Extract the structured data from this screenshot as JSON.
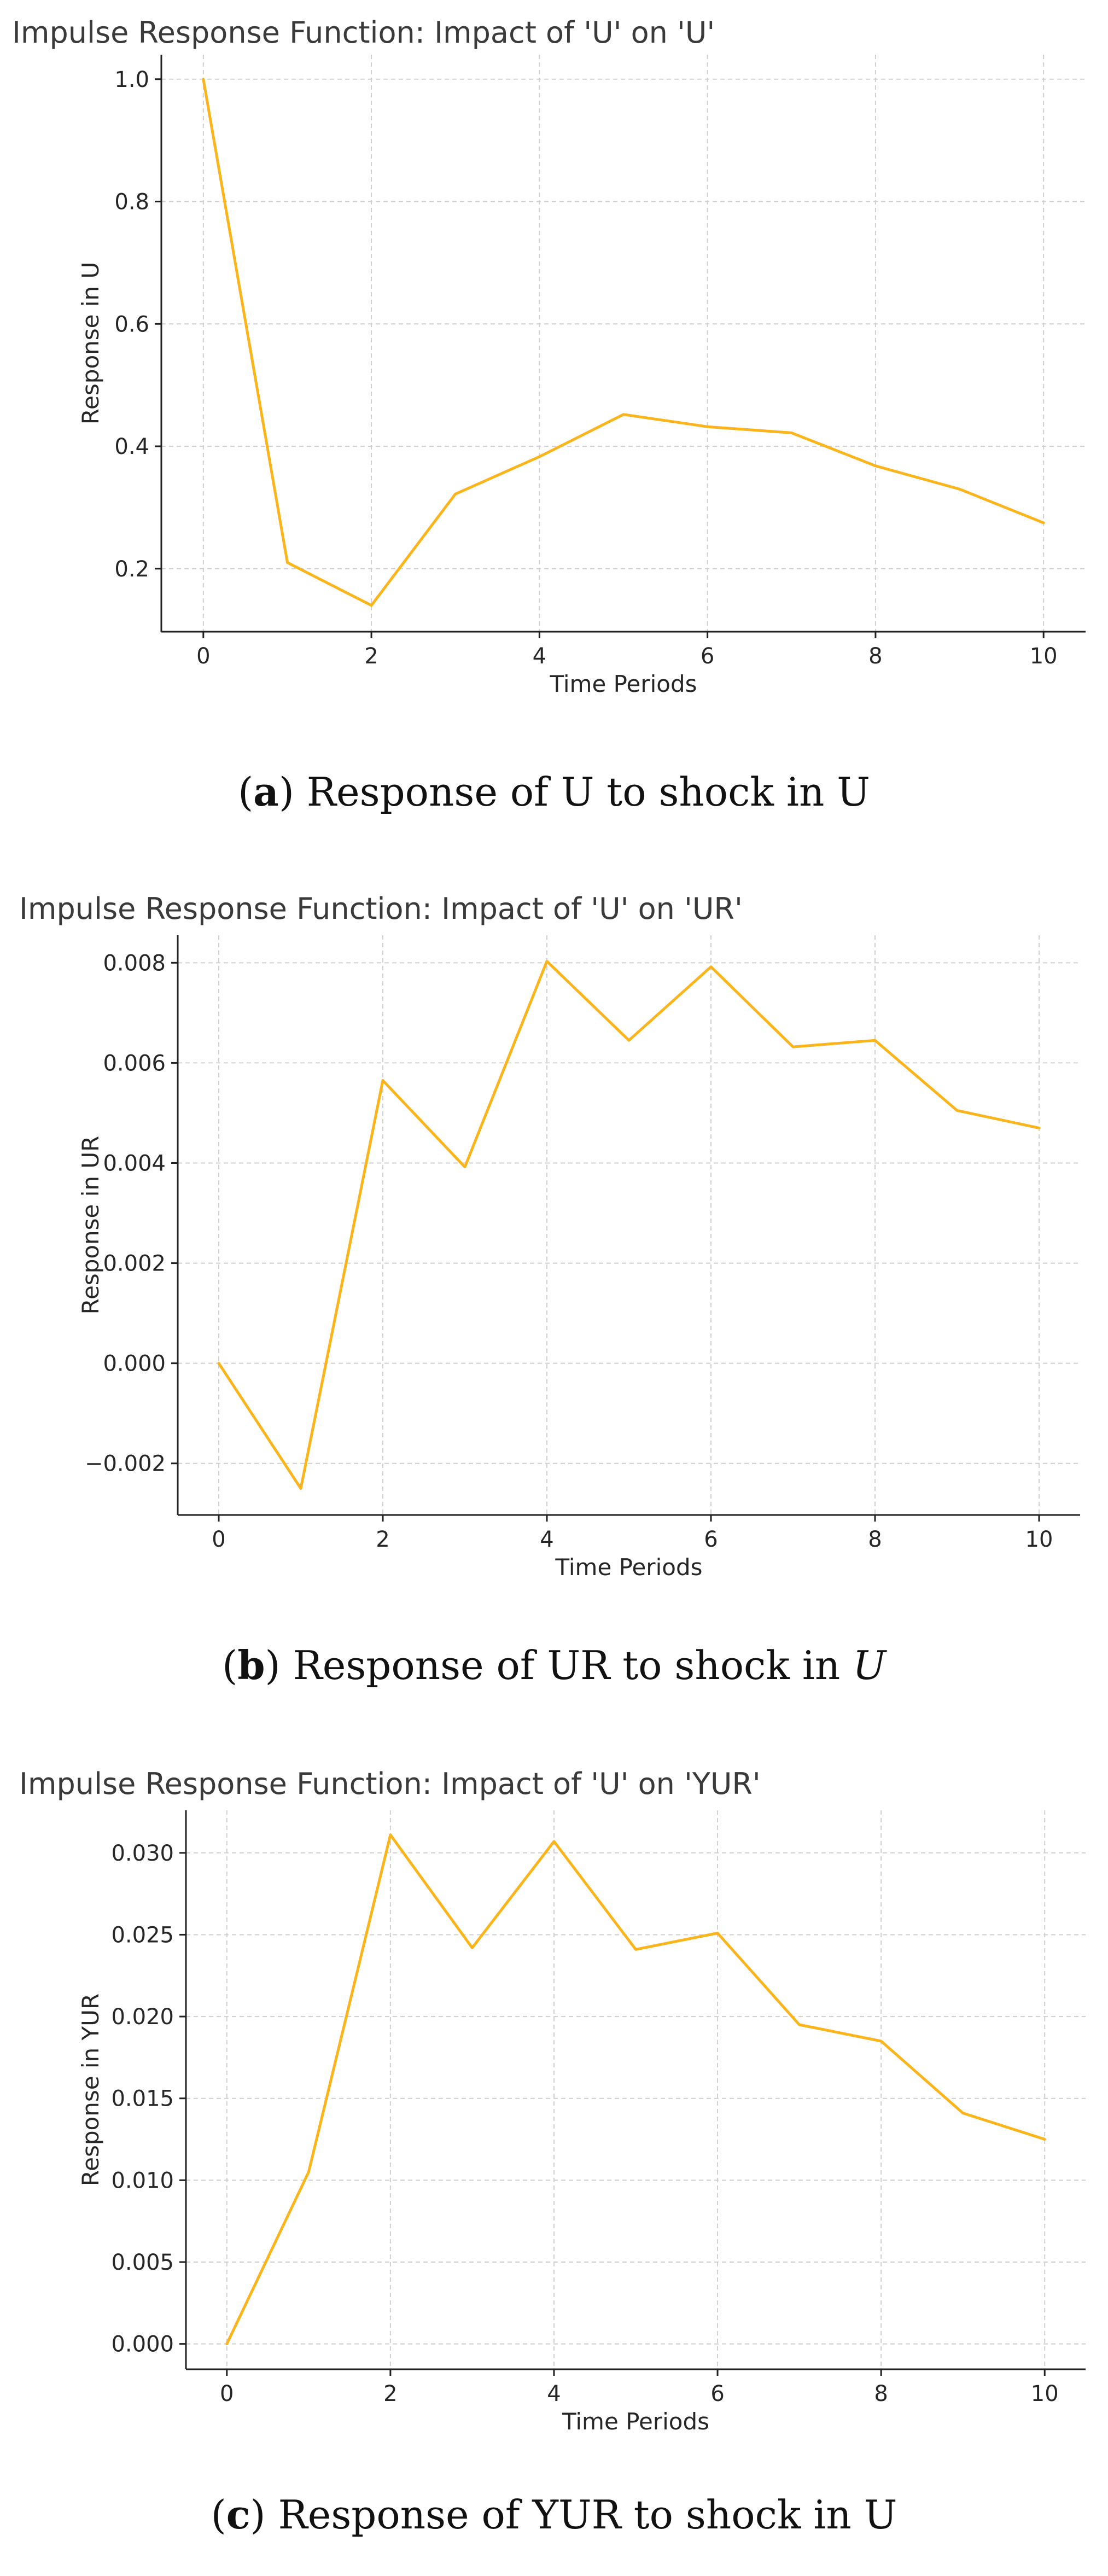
{
  "colors": {
    "line": "#fbb41a",
    "axis": "#222222",
    "grid": "#d0d0d0"
  },
  "captions": [
    {
      "open": "(",
      "letter": "a",
      "close": ") ",
      "text": "Response of U to shock in ",
      "var": "U",
      "var_italic": false
    },
    {
      "open": "(",
      "letter": "b",
      "close": ") ",
      "text": "Response of UR to shock in ",
      "var": "U",
      "var_italic": true
    },
    {
      "open": "(",
      "letter": "c",
      "close": ") ",
      "text": "Response of YUR to shock in ",
      "var": "U",
      "var_italic": false
    }
  ],
  "chart_data": [
    {
      "type": "line",
      "title": "Impulse Response Function: Impact of 'U' on 'U'",
      "xlabel": "Time Periods",
      "ylabel": "Response in U",
      "x": [
        0,
        1,
        2,
        3,
        4,
        5,
        6,
        7,
        8,
        9,
        10
      ],
      "values": [
        1.0,
        0.21,
        0.14,
        0.322,
        0.383,
        0.452,
        0.432,
        0.422,
        0.368,
        0.33,
        0.275
      ],
      "xticks": [
        0,
        2,
        4,
        6,
        8,
        10
      ],
      "yticks": [
        0.2,
        0.4,
        0.6,
        0.8,
        1.0
      ],
      "ytick_labels": [
        "0.2",
        "0.4",
        "0.6",
        "0.8",
        "1.0"
      ],
      "xlim": [
        -0.5,
        10.5
      ],
      "ylim": [
        0.097,
        1.04
      ],
      "grid": true
    },
    {
      "type": "line",
      "title": "Impulse Response Function: Impact of 'U' on 'UR'",
      "xlabel": "Time Periods",
      "ylabel": "Response in UR",
      "x": [
        0,
        1,
        2,
        3,
        4,
        5,
        6,
        7,
        8,
        9,
        10
      ],
      "values": [
        0.0,
        -0.0025,
        0.00565,
        0.00392,
        0.00803,
        0.00645,
        0.00792,
        0.00632,
        0.00645,
        0.00505,
        0.0047
      ],
      "xticks": [
        0,
        2,
        4,
        6,
        8,
        10
      ],
      "yticks": [
        -0.002,
        0.0,
        0.002,
        0.004,
        0.006,
        0.008
      ],
      "ytick_labels": [
        "−0.002",
        "0.000",
        "0.002",
        "0.004",
        "0.006",
        "0.008"
      ],
      "xlim": [
        -0.5,
        10.5
      ],
      "ylim": [
        -0.00303,
        0.00855
      ],
      "grid": true
    },
    {
      "type": "line",
      "title": "Impulse Response Function: Impact of 'U' on 'YUR'",
      "xlabel": "Time Periods",
      "ylabel": "Response in YUR",
      "x": [
        0,
        1,
        2,
        3,
        4,
        5,
        6,
        7,
        8,
        9,
        10
      ],
      "values": [
        0.0,
        0.0105,
        0.0311,
        0.0242,
        0.0307,
        0.0241,
        0.0251,
        0.0195,
        0.0185,
        0.0141,
        0.0125
      ],
      "xticks": [
        0,
        2,
        4,
        6,
        8,
        10
      ],
      "yticks": [
        0.0,
        0.005,
        0.01,
        0.015,
        0.02,
        0.025,
        0.03
      ],
      "ytick_labels": [
        "0.000",
        "0.005",
        "0.010",
        "0.015",
        "0.020",
        "0.025",
        "0.030"
      ],
      "xlim": [
        -0.5,
        10.5
      ],
      "ylim": [
        -0.00155,
        0.0326
      ],
      "grid": true
    }
  ]
}
